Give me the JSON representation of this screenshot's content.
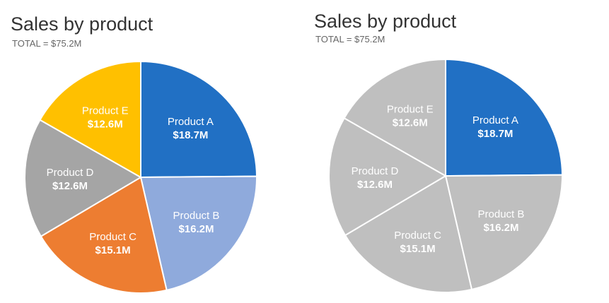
{
  "colors": {
    "text": "#333333",
    "subtext": "#666666",
    "slice_border": "#ffffff",
    "label": "#ffffff"
  },
  "chart_data": [
    {
      "type": "pie",
      "title": "Sales by product",
      "subtitle": "TOTAL = $75.2M",
      "legend": "none",
      "slices": [
        {
          "label": "Product A",
          "value_label": "$18.7M",
          "value": 18.7,
          "color": "#2170C4"
        },
        {
          "label": "Product B",
          "value_label": "$16.2M",
          "value": 16.2,
          "color": "#8FAADC"
        },
        {
          "label": "Product C",
          "value_label": "$15.1M",
          "value": 15.1,
          "color": "#ED7D31"
        },
        {
          "label": "Product D",
          "value_label": "$12.6M",
          "value": 12.6,
          "color": "#A5A5A5"
        },
        {
          "label": "Product E",
          "value_label": "$12.6M",
          "value": 12.6,
          "color": "#FFC000"
        }
      ]
    },
    {
      "type": "pie",
      "title": "Sales by product",
      "subtitle": "TOTAL = $75.2M",
      "legend": "none",
      "highlight": "Product A",
      "slices": [
        {
          "label": "Product A",
          "value_label": "$18.7M",
          "value": 18.7,
          "color": "#2170C4"
        },
        {
          "label": "Product B",
          "value_label": "$16.2M",
          "value": 16.2,
          "color": "#BFBFBF"
        },
        {
          "label": "Product C",
          "value_label": "$15.1M",
          "value": 15.1,
          "color": "#BFBFBF"
        },
        {
          "label": "Product D",
          "value_label": "$12.6M",
          "value": 12.6,
          "color": "#BFBFBF"
        },
        {
          "label": "Product E",
          "value_label": "$12.6M",
          "value": 12.6,
          "color": "#BFBFBF"
        }
      ]
    }
  ]
}
